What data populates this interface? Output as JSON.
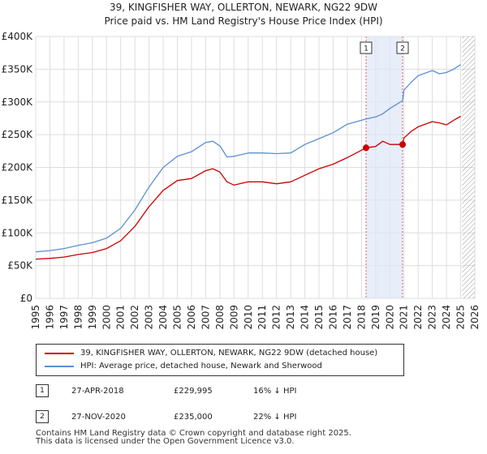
{
  "chart_data": {
    "type": "line",
    "title": "39, KINGFISHER WAY, OLLERTON, NEWARK, NG22 9DW",
    "subtitle": "Price paid vs. HM Land Registry's House Price Index (HPI)",
    "xlim": [
      1995,
      2026
    ],
    "ylim": [
      0,
      400000
    ],
    "x_ticks": [
      "1995",
      "1996",
      "1997",
      "1998",
      "1999",
      "2000",
      "2001",
      "2002",
      "2003",
      "2004",
      "2005",
      "2006",
      "2007",
      "2008",
      "2009",
      "2010",
      "2011",
      "2012",
      "2013",
      "2014",
      "2015",
      "2016",
      "2017",
      "2018",
      "2019",
      "2020",
      "2021",
      "2022",
      "2023",
      "2024",
      "2025",
      "2026"
    ],
    "y_ticks": [
      {
        "value": 0,
        "label": "£0"
      },
      {
        "value": 50000,
        "label": "£50K"
      },
      {
        "value": 100000,
        "label": "£100K"
      },
      {
        "value": 150000,
        "label": "£150K"
      },
      {
        "value": 200000,
        "label": "£200K"
      },
      {
        "value": 250000,
        "label": "£250K"
      },
      {
        "value": 300000,
        "label": "£300K"
      },
      {
        "value": 350000,
        "label": "£350K"
      },
      {
        "value": 400000,
        "label": "£400K"
      }
    ],
    "grid": true,
    "shaded_period": [
      2018.32,
      2020.9
    ],
    "hatched_from": 2025.1,
    "series": [
      {
        "name": "39, KINGFISHER WAY, OLLERTON, NEWARK, NG22 9DW (detached house)",
        "color": "#cc0000",
        "x": [
          1995,
          1996,
          1997,
          1998,
          1999,
          2000,
          2001,
          2002,
          2003,
          2004,
          2005,
          2006,
          2007,
          2007.5,
          2008,
          2008.5,
          2009,
          2010,
          2011,
          2012,
          2013,
          2014,
          2015,
          2016,
          2017,
          2018.32,
          2019,
          2019.5,
          2020,
          2020.9,
          2021,
          2021.5,
          2022,
          2023,
          2023.5,
          2024,
          2024.5,
          2025
        ],
        "values": [
          60000,
          61000,
          63000,
          67000,
          70000,
          76000,
          88000,
          110000,
          140000,
          165000,
          180000,
          183000,
          195000,
          198000,
          193000,
          178000,
          173000,
          178000,
          178000,
          175000,
          178000,
          188000,
          198000,
          205000,
          215000,
          229995,
          232000,
          240000,
          235000,
          235000,
          245000,
          255000,
          262000,
          270000,
          268000,
          265000,
          272000,
          278000
        ]
      },
      {
        "name": "HPI: Average price, detached house, Newark and Sherwood",
        "color": "#5b8fd4",
        "x": [
          1995,
          1996,
          1997,
          1998,
          1999,
          2000,
          2001,
          2002,
          2003,
          2004,
          2005,
          2006,
          2007,
          2007.5,
          2008,
          2008.5,
          2009,
          2010,
          2011,
          2012,
          2013,
          2014,
          2015,
          2016,
          2017,
          2018.32,
          2019,
          2019.5,
          2020,
          2020.9,
          2021,
          2021.5,
          2022,
          2023,
          2023.5,
          2024,
          2024.5,
          2025
        ],
        "values": [
          71000,
          73000,
          76000,
          81000,
          85000,
          92000,
          107000,
          135000,
          170000,
          200000,
          217000,
          224000,
          238000,
          240000,
          233000,
          216000,
          217000,
          222000,
          222000,
          221000,
          222000,
          235000,
          244000,
          253000,
          266000,
          274000,
          277000,
          282000,
          290000,
          302000,
          318000,
          330000,
          340000,
          348000,
          343000,
          345000,
          350000,
          357000
        ]
      }
    ],
    "sales": [
      {
        "label": "1",
        "x": 2018.32,
        "value": 229995
      },
      {
        "label": "2",
        "x": 2020.9,
        "value": 235000
      }
    ]
  },
  "legend": {
    "property_label": "39, KINGFISHER WAY, OLLERTON, NEWARK, NG22 9DW (detached house)",
    "hpi_label": "HPI: Average price, detached house, Newark and Sherwood",
    "property_color": "#cc0000",
    "hpi_color": "#5b8fd4"
  },
  "sales_table": [
    {
      "num": "1",
      "date": "27-APR-2018",
      "price": "£229,995",
      "hpi": "16% ↓ HPI"
    },
    {
      "num": "2",
      "date": "27-NOV-2020",
      "price": "£235,000",
      "hpi": "22% ↓ HPI"
    }
  ],
  "footer": {
    "line1": "Contains HM Land Registry data © Crown copyright and database right 2025.",
    "line2": "This data is licensed under the Open Government Licence v3.0."
  }
}
